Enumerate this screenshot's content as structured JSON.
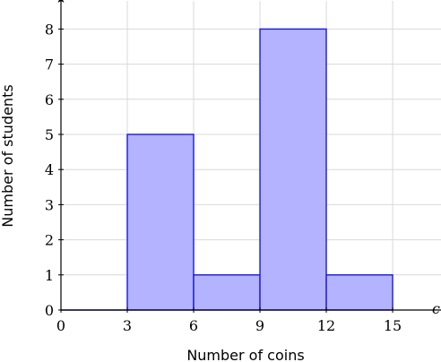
{
  "chart_data": {
    "type": "bar",
    "variant": "histogram",
    "bins": [
      {
        "start": 0,
        "end": 3,
        "value": 0
      },
      {
        "start": 3,
        "end": 6,
        "value": 5
      },
      {
        "start": 6,
        "end": 9,
        "value": 1
      },
      {
        "start": 9,
        "end": 12,
        "value": 8
      },
      {
        "start": 12,
        "end": 15,
        "value": 1
      }
    ],
    "xlabel": "Number of coins",
    "ylabel": "Number of students",
    "x_axis_variable": "c",
    "x_ticks": [
      "0",
      "3",
      "6",
      "9",
      "12",
      "15"
    ],
    "y_ticks": [
      "0",
      "1",
      "2",
      "3",
      "4",
      "5",
      "6",
      "7",
      "8"
    ],
    "xlim": [
      0,
      17.3
    ],
    "ylim": [
      0,
      8.8
    ],
    "grid": true,
    "colors": {
      "bar_fill": "#b3b3ff",
      "bar_stroke": "#1a1adb",
      "grid": "#d9d9d9",
      "axis": "#000000"
    }
  }
}
